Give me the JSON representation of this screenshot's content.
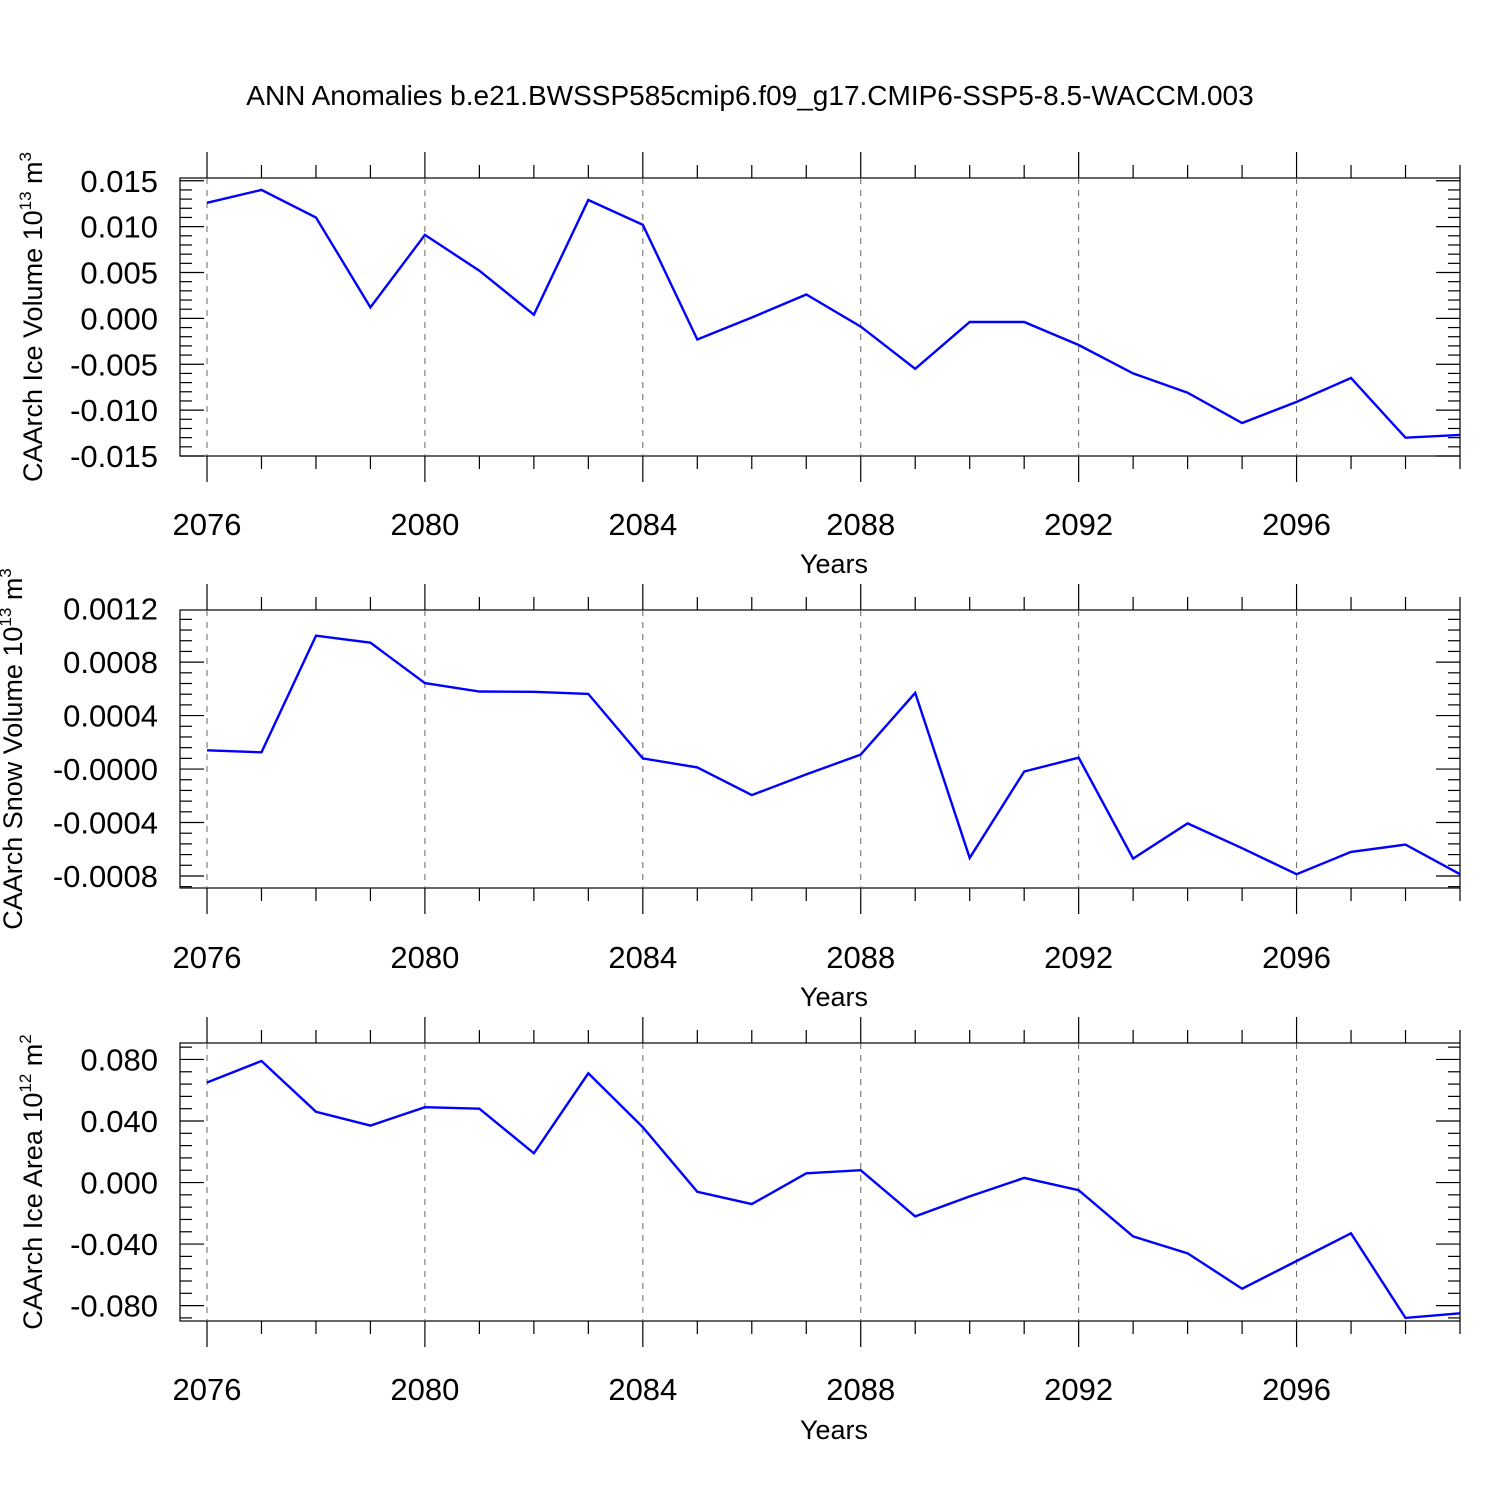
{
  "chart_data": {
    "title": "ANN Anomalies b.e21.BWSSP585cmip6.f09_g17.CMIP6-SSP5-8.5-WACCM.003",
    "panels": [
      {
        "type": "line",
        "ylabel": {
          "name": "CAArch Ice Volume",
          "unit_base": "10",
          "unit_exp": "13",
          "unit": "m",
          "unit_unit_exp": "3"
        },
        "xlabel": "Years",
        "xlim": [
          2076,
          2099
        ],
        "ylim": [
          -0.015,
          0.0153
        ],
        "yticks": [
          -0.015,
          -0.01,
          -0.005,
          0.0,
          0.005,
          0.01,
          0.015
        ],
        "ytick_labels": [
          "-0.015",
          "-0.010",
          "-0.005",
          "0.000",
          "0.005",
          "0.010",
          "0.015"
        ],
        "xticks": [
          2076,
          2080,
          2084,
          2088,
          2092,
          2096
        ],
        "xtick_labels": [
          "2076",
          "2080",
          "2084",
          "2088",
          "2092",
          "2096"
        ],
        "grid": "x-dashed",
        "line_color": "#0000ff",
        "x": [
          2076,
          2077,
          2078,
          2079,
          2080,
          2081,
          2082,
          2083,
          2084,
          2085,
          2086,
          2087,
          2088,
          2089,
          2090,
          2091,
          2092,
          2093,
          2094,
          2095,
          2096,
          2097,
          2098,
          2099
        ],
        "y": [
          0.0126,
          0.014,
          0.011,
          0.0012,
          0.0091,
          0.0052,
          0.0004,
          0.0129,
          0.0102,
          -0.0023,
          0.0001,
          0.0026,
          -0.0009,
          -0.0055,
          -0.0004,
          -0.0004,
          -0.0029,
          -0.006,
          -0.0081,
          -0.0114,
          -0.0091,
          -0.0065,
          -0.013,
          -0.0127
        ]
      },
      {
        "type": "line",
        "ylabel": {
          "name": "CAArch Snow Volume",
          "unit_base": "10",
          "unit_exp": "13",
          "unit": "m",
          "unit_unit_exp": "3"
        },
        "xlabel": "Years",
        "xlim": [
          2076,
          2099
        ],
        "ylim": [
          -0.00089,
          0.00119
        ],
        "yticks": [
          -0.0008,
          -0.0004,
          0.0,
          0.0004,
          0.0008,
          0.0012
        ],
        "ytick_labels": [
          "-0.0008",
          "-0.0004",
          "-0.0000",
          "0.0004",
          "0.0008",
          "0.0012"
        ],
        "xticks": [
          2076,
          2080,
          2084,
          2088,
          2092,
          2096
        ],
        "xtick_labels": [
          "2076",
          "2080",
          "2084",
          "2088",
          "2092",
          "2096"
        ],
        "grid": "x-dashed",
        "line_color": "#0000ff",
        "x": [
          2076,
          2077,
          2078,
          2079,
          2080,
          2081,
          2082,
          2083,
          2084,
          2085,
          2086,
          2087,
          2088,
          2089,
          2090,
          2091,
          2092,
          2093,
          2094,
          2095,
          2096,
          2097,
          2098,
          2099
        ],
        "y": [
          0.00014,
          0.000125,
          0.000998,
          0.000945,
          0.000643,
          0.00058,
          0.000578,
          0.000562,
          8e-05,
          1.2e-05,
          -0.000195,
          -4e-05,
          0.000108,
          0.00057,
          -0.000665,
          -1.8e-05,
          8.5e-05,
          -0.00067,
          -0.000407,
          -0.000592,
          -0.000787,
          -0.00062,
          -0.000565,
          -0.000787
        ]
      },
      {
        "type": "line",
        "ylabel": {
          "name": "CAArch Ice Area",
          "unit_base": "10",
          "unit_exp": "12",
          "unit": "m",
          "unit_unit_exp": "2"
        },
        "xlabel": "Years",
        "xlim": [
          2076,
          2099
        ],
        "ylim": [
          -0.09,
          0.0907
        ],
        "yticks": [
          -0.08,
          -0.04,
          0.0,
          0.04,
          0.08
        ],
        "ytick_labels": [
          "-0.080",
          "-0.040",
          "0.000",
          "0.040",
          "0.080"
        ],
        "xticks": [
          2076,
          2080,
          2084,
          2088,
          2092,
          2096
        ],
        "xtick_labels": [
          "2076",
          "2080",
          "2084",
          "2088",
          "2092",
          "2096"
        ],
        "grid": "x-dashed",
        "line_color": "#0000ff",
        "x": [
          2076,
          2077,
          2078,
          2079,
          2080,
          2081,
          2082,
          2083,
          2084,
          2085,
          2086,
          2087,
          2088,
          2089,
          2090,
          2091,
          2092,
          2093,
          2094,
          2095,
          2096,
          2097,
          2098,
          2099
        ],
        "y": [
          0.065,
          0.079,
          0.046,
          0.037,
          0.049,
          0.048,
          0.019,
          0.071,
          0.036,
          -0.006,
          -0.014,
          0.006,
          0.008,
          -0.022,
          -0.009,
          0.003,
          -0.005,
          -0.035,
          -0.046,
          -0.069,
          -0.051,
          -0.033,
          -0.088,
          -0.085
        ]
      }
    ]
  }
}
